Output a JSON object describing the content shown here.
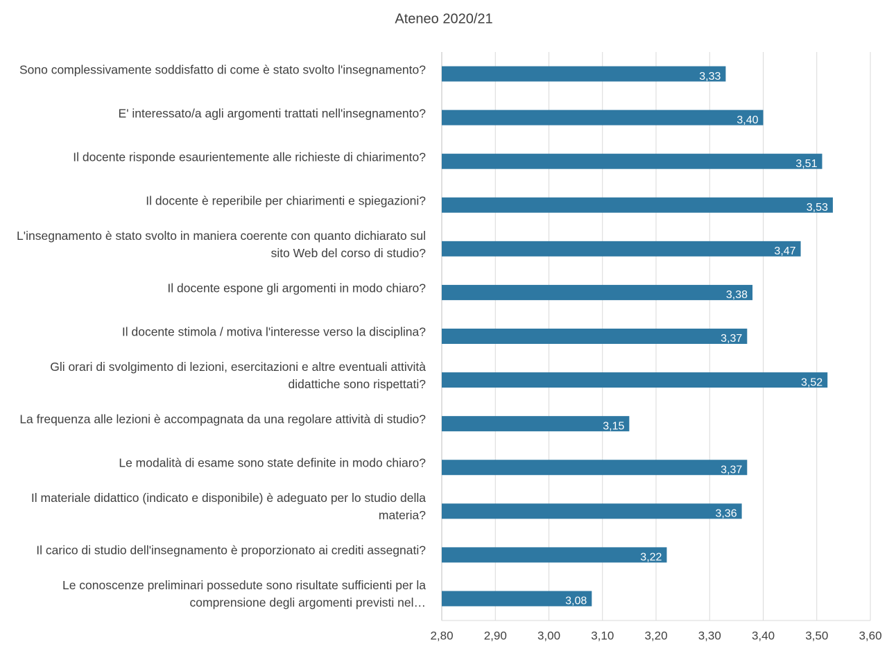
{
  "chart_data": {
    "type": "bar",
    "orientation": "horizontal",
    "title": "Ateneo 2020/21",
    "categories": [
      "Sono complessivamente soddisfatto di come è stato svolto l'insegnamento?",
      "E' interessato/a agli argomenti trattati nell'insegnamento?",
      "Il docente risponde esaurientemente alle richieste di chiarimento?",
      "Il docente è reperibile per chiarimenti e spiegazioni?",
      "L'insegnamento è stato svolto in maniera coerente con quanto dichiarato sul sito Web del corso di studio?",
      "Il docente espone gli argomenti in modo chiaro?",
      "Il docente stimola / motiva l'interesse verso la disciplina?",
      "Gli orari di svolgimento di lezioni, esercitazioni e altre eventuali attività didattiche sono rispettati?",
      "La frequenza alle lezioni è accompagnata da una regolare attività di studio?",
      "Le modalità di esame sono state definite in modo chiaro?",
      "Il materiale didattico (indicato e disponibile) è adeguato per lo studio della materia?",
      "Il carico di studio dell'insegnamento è proporzionato ai crediti assegnati?",
      "Le conoscenze preliminari possedute sono risultate sufficienti per la comprensione degli argomenti previsti nel…"
    ],
    "values": [
      3.33,
      3.4,
      3.51,
      3.53,
      3.47,
      3.38,
      3.37,
      3.52,
      3.15,
      3.37,
      3.36,
      3.22,
      3.08
    ],
    "value_labels": [
      "3,33",
      "3,40",
      "3,51",
      "3,53",
      "3,47",
      "3,38",
      "3,37",
      "3,52",
      "3,15",
      "3,37",
      "3,36",
      "3,22",
      "3,08"
    ],
    "color": "#2e78a2",
    "xlim": [
      2.8,
      3.6
    ],
    "xticks": [
      {
        "value": 2.8,
        "label": "2,80"
      },
      {
        "value": 2.9,
        "label": "2,90"
      },
      {
        "value": 3.0,
        "label": "3,00"
      },
      {
        "value": 3.1,
        "label": "3,10"
      },
      {
        "value": 3.2,
        "label": "3,20"
      },
      {
        "value": 3.3,
        "label": "3,30"
      },
      {
        "value": 3.4,
        "label": "3,40"
      },
      {
        "value": 3.5,
        "label": "3,50"
      },
      {
        "value": 3.6,
        "label": "3,60"
      }
    ],
    "grid": true
  }
}
